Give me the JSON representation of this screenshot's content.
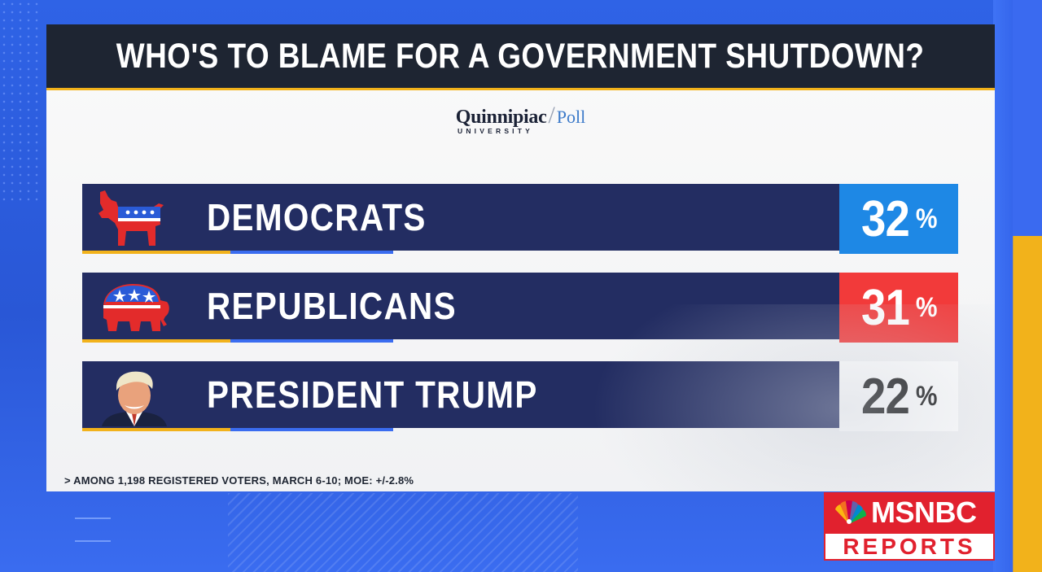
{
  "title": "WHO'S TO BLAME FOR A GOVERNMENT SHUTDOWN?",
  "source": {
    "name": "Quinnipiac",
    "divider": "/",
    "product": "Poll",
    "subtitle": "UNIVERSITY"
  },
  "chart_data": {
    "type": "bar",
    "title": "WHO'S TO BLAME FOR A GOVERNMENT SHUTDOWN?",
    "categories": [
      "DEMOCRATS",
      "REPUBLICANS",
      "PRESIDENT TRUMP"
    ],
    "values": [
      32,
      31,
      22
    ],
    "value_labels": [
      "32",
      "31",
      "22"
    ],
    "unit": "%",
    "colors": [
      "#1e88e5",
      "#f23a3a",
      "#ffffff"
    ],
    "value_text_colors": [
      "#ffffff",
      "#ffffff",
      "#111111"
    ],
    "icons": [
      "democratic-donkey-icon",
      "republican-elephant-icon",
      "president-trump-photo"
    ]
  },
  "footnote": "> AMONG 1,198 REGISTERED VOTERS, MARCH 6-10; MOE: +/-2.8%",
  "network": {
    "brand": "MSNBC",
    "show": "REPORTS",
    "color": "#e1212e"
  }
}
